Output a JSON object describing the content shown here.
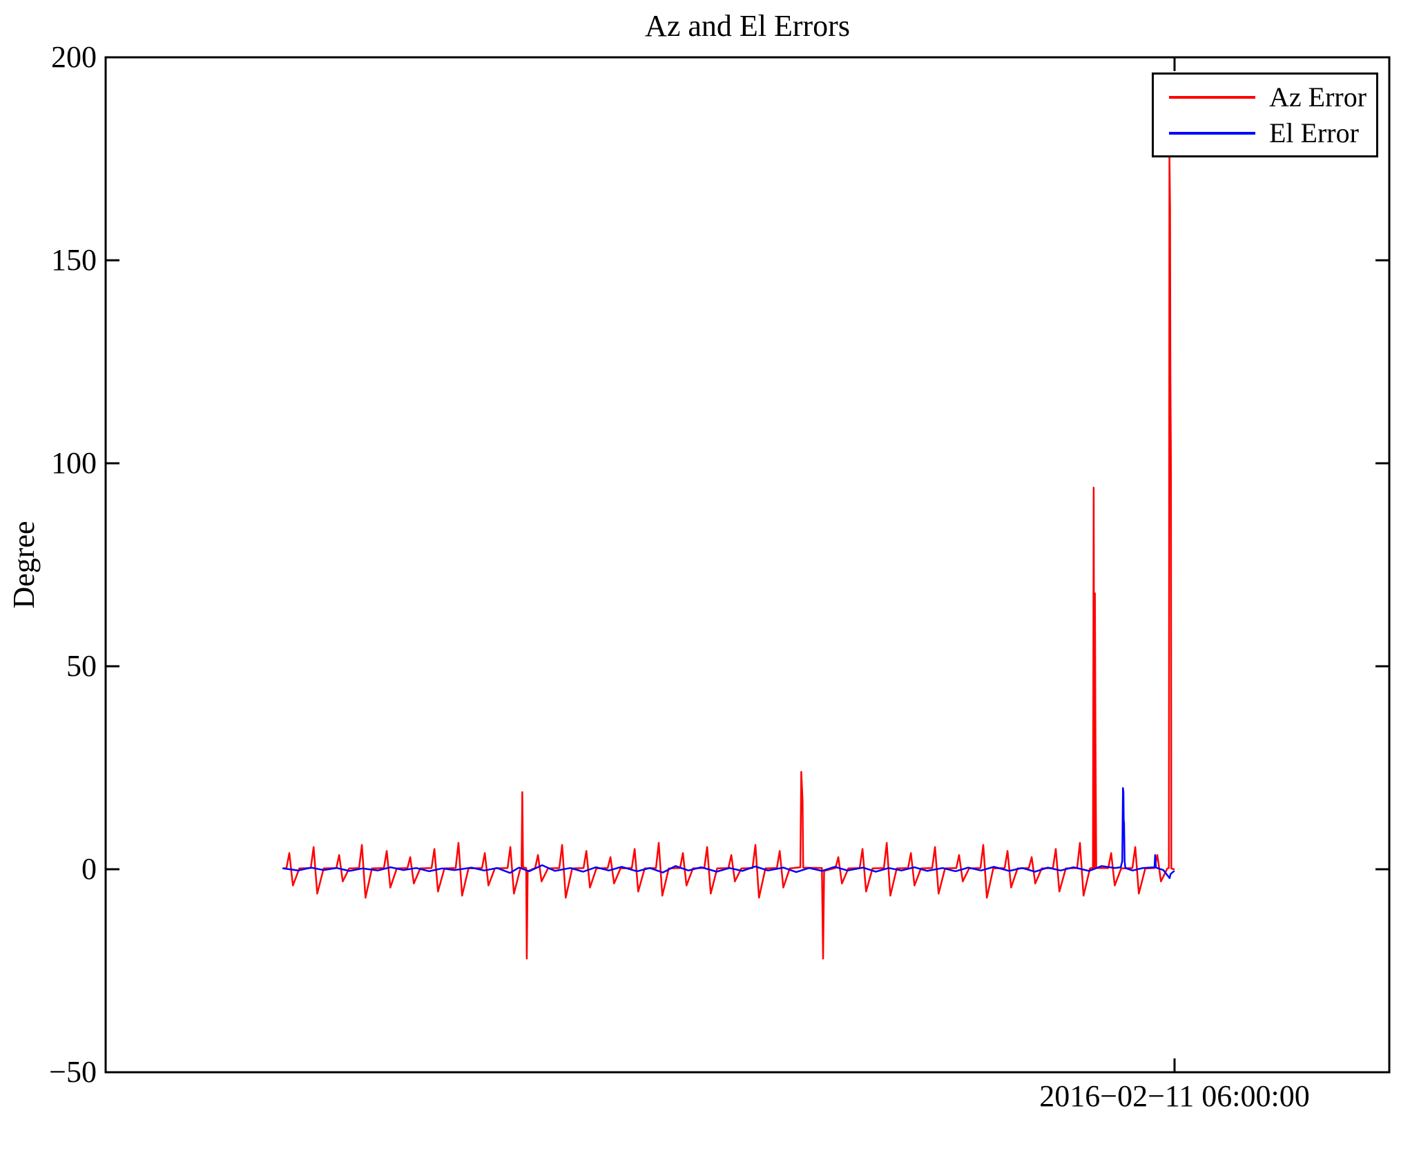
{
  "chart_data": {
    "type": "line",
    "title": "Az and El Errors",
    "xlabel": "",
    "ylabel": "Degree",
    "ylim": [
      -50,
      200
    ],
    "xlim": [
      0,
      1
    ],
    "x_units": "fraction of x-axis width (only one timestamp tick is labeled)",
    "grid": false,
    "axis_color": "#000000",
    "background_color": "#ffffff",
    "yticks": [
      {
        "value": -50,
        "label": "−50"
      },
      {
        "value": 0,
        "label": "0"
      },
      {
        "value": 50,
        "label": "50"
      },
      {
        "value": 100,
        "label": "100"
      },
      {
        "value": 150,
        "label": "150"
      },
      {
        "value": 200,
        "label": "200"
      }
    ],
    "xticks": [
      {
        "value": 0.8327,
        "label": "2016−02−11 06:00:00"
      }
    ],
    "legend": {
      "position": "top-right",
      "entries": [
        {
          "name": "Az Error",
          "color": "#ff0000"
        },
        {
          "name": "El Error",
          "color": "#0000ff"
        }
      ]
    },
    "observed_extremes": {
      "az_error_max_deg": 176,
      "az_error_min_deg": -22,
      "el_error_max_deg": 20,
      "el_error_min_deg": -2
    },
    "series": [
      {
        "name": "Az Error",
        "color": "#ff0000",
        "points": [
          [
            0.1383,
            0.2
          ],
          [
            0.1409,
            0.3
          ],
          [
            0.1431,
            4
          ],
          [
            0.1459,
            -4
          ],
          [
            0.1509,
            0.2
          ],
          [
            0.1598,
            0.3
          ],
          [
            0.162,
            5.5
          ],
          [
            0.1648,
            -6
          ],
          [
            0.1698,
            0.2
          ],
          [
            0.1797,
            0.3
          ],
          [
            0.1819,
            3.5
          ],
          [
            0.1847,
            -3
          ],
          [
            0.1897,
            0.2
          ],
          [
            0.1974,
            0.3
          ],
          [
            0.1996,
            6
          ],
          [
            0.2024,
            -7
          ],
          [
            0.2074,
            0.2
          ],
          [
            0.2168,
            0.3
          ],
          [
            0.219,
            4.5
          ],
          [
            0.2218,
            -4.5
          ],
          [
            0.2268,
            0.2
          ],
          [
            0.2351,
            0.3
          ],
          [
            0.2373,
            3
          ],
          [
            0.2401,
            -3.5
          ],
          [
            0.2451,
            0.2
          ],
          [
            0.2539,
            0.3
          ],
          [
            0.2561,
            5
          ],
          [
            0.2589,
            -5.5
          ],
          [
            0.2639,
            0.2
          ],
          [
            0.2727,
            0.3
          ],
          [
            0.2749,
            6.5
          ],
          [
            0.2777,
            -6.5
          ],
          [
            0.2827,
            0.2
          ],
          [
            0.2932,
            0.3
          ],
          [
            0.2954,
            4
          ],
          [
            0.2982,
            -4
          ],
          [
            0.3032,
            0.2
          ],
          [
            0.3131,
            0.3
          ],
          [
            0.3153,
            5.5
          ],
          [
            0.3181,
            -6
          ],
          [
            0.3231,
            0.2
          ],
          [
            0.324,
            0.3
          ],
          [
            0.3246,
            19
          ],
          [
            0.3252,
            0.5
          ],
          [
            0.3276,
            0.3
          ],
          [
            0.3281,
            -22
          ],
          [
            0.3288,
            -0.5
          ],
          [
            0.3346,
            0.3
          ],
          [
            0.3368,
            3.5
          ],
          [
            0.3396,
            -3
          ],
          [
            0.3446,
            0.2
          ],
          [
            0.3534,
            0.3
          ],
          [
            0.3556,
            6
          ],
          [
            0.3584,
            -7
          ],
          [
            0.3634,
            0.2
          ],
          [
            0.3723,
            0.3
          ],
          [
            0.3745,
            4.5
          ],
          [
            0.3773,
            -4.5
          ],
          [
            0.3823,
            0.2
          ],
          [
            0.3911,
            0.3
          ],
          [
            0.3933,
            3
          ],
          [
            0.3961,
            -3.5
          ],
          [
            0.4011,
            0.2
          ],
          [
            0.4099,
            0.3
          ],
          [
            0.4121,
            5
          ],
          [
            0.4149,
            -5.5
          ],
          [
            0.4199,
            0.2
          ],
          [
            0.4287,
            0.3
          ],
          [
            0.4309,
            6.5
          ],
          [
            0.4337,
            -6.5
          ],
          [
            0.4387,
            0.2
          ],
          [
            0.4475,
            0.3
          ],
          [
            0.4497,
            4
          ],
          [
            0.4525,
            -4
          ],
          [
            0.4575,
            0.2
          ],
          [
            0.4664,
            0.3
          ],
          [
            0.4686,
            5.5
          ],
          [
            0.4714,
            -6
          ],
          [
            0.4764,
            0.2
          ],
          [
            0.4852,
            0.3
          ],
          [
            0.4874,
            3.5
          ],
          [
            0.4902,
            -3
          ],
          [
            0.4952,
            0.2
          ],
          [
            0.504,
            0.3
          ],
          [
            0.5062,
            6
          ],
          [
            0.509,
            -7
          ],
          [
            0.514,
            0.2
          ],
          [
            0.5229,
            0.3
          ],
          [
            0.5251,
            4.5
          ],
          [
            0.5279,
            -4.5
          ],
          [
            0.5329,
            0.2
          ],
          [
            0.5412,
            0.5
          ],
          [
            0.5419,
            24
          ],
          [
            0.5429,
            17
          ],
          [
            0.5434,
            0.4
          ],
          [
            0.558,
            0.3
          ],
          [
            0.5589,
            -22
          ],
          [
            0.5597,
            -0.4
          ],
          [
            0.5686,
            0.3
          ],
          [
            0.5708,
            3
          ],
          [
            0.5736,
            -3.5
          ],
          [
            0.5786,
            0.2
          ],
          [
            0.5874,
            0.3
          ],
          [
            0.5896,
            5
          ],
          [
            0.5924,
            -5.5
          ],
          [
            0.5974,
            0.2
          ],
          [
            0.6063,
            0.3
          ],
          [
            0.6085,
            6.5
          ],
          [
            0.6113,
            -6.5
          ],
          [
            0.6163,
            0.2
          ],
          [
            0.6251,
            0.3
          ],
          [
            0.6273,
            4
          ],
          [
            0.6301,
            -4
          ],
          [
            0.6351,
            0.2
          ],
          [
            0.6439,
            0.3
          ],
          [
            0.6461,
            5.5
          ],
          [
            0.6489,
            -6
          ],
          [
            0.6539,
            0.2
          ],
          [
            0.6627,
            0.3
          ],
          [
            0.6649,
            3.5
          ],
          [
            0.6677,
            -3
          ],
          [
            0.6727,
            0.2
          ],
          [
            0.6815,
            0.3
          ],
          [
            0.6837,
            6
          ],
          [
            0.6865,
            -7
          ],
          [
            0.6915,
            0.2
          ],
          [
            0.7004,
            0.3
          ],
          [
            0.7026,
            4.5
          ],
          [
            0.7054,
            -4.5
          ],
          [
            0.7104,
            0.2
          ],
          [
            0.7192,
            0.3
          ],
          [
            0.7214,
            3
          ],
          [
            0.7242,
            -3.5
          ],
          [
            0.7292,
            0.2
          ],
          [
            0.738,
            0.3
          ],
          [
            0.7402,
            5
          ],
          [
            0.743,
            -5.5
          ],
          [
            0.748,
            0.2
          ],
          [
            0.7568,
            0.3
          ],
          [
            0.759,
            6.5
          ],
          [
            0.7618,
            -6.5
          ],
          [
            0.7668,
            0.2
          ],
          [
            0.7691,
            0.4
          ],
          [
            0.7697,
            94
          ],
          [
            0.7703,
            0.5
          ],
          [
            0.7707,
            68
          ],
          [
            0.7711,
            32
          ],
          [
            0.7717,
            0.3
          ],
          [
            0.7811,
            0.3
          ],
          [
            0.7833,
            4
          ],
          [
            0.7861,
            -4
          ],
          [
            0.7911,
            0.2
          ],
          [
            0.7999,
            0.3
          ],
          [
            0.8021,
            5.5
          ],
          [
            0.8049,
            -6
          ],
          [
            0.8099,
            0.2
          ],
          [
            0.8171,
            0.3
          ],
          [
            0.8193,
            3.5
          ],
          [
            0.8221,
            -3
          ],
          [
            0.8271,
            0.2
          ],
          [
            0.8283,
            0.3
          ],
          [
            0.8287,
            176
          ],
          [
            0.8292,
            163
          ],
          [
            0.8295,
            122
          ],
          [
            0.8299,
            100
          ],
          [
            0.8302,
            0.2
          ],
          [
            0.8322,
            0
          ]
        ]
      },
      {
        "name": "El Error",
        "color": "#0000ff",
        "points": [
          [
            0.1383,
            0.2
          ],
          [
            0.15,
            -0.3
          ],
          [
            0.16,
            0.4
          ],
          [
            0.17,
            -0.2
          ],
          [
            0.18,
            0.3
          ],
          [
            0.19,
            -0.4
          ],
          [
            0.2,
            0.2
          ],
          [
            0.212,
            -0.3
          ],
          [
            0.222,
            0.5
          ],
          [
            0.232,
            -0.2
          ],
          [
            0.242,
            0.3
          ],
          [
            0.252,
            -0.5
          ],
          [
            0.262,
            0.2
          ],
          [
            0.272,
            -0.2
          ],
          [
            0.285,
            0.4
          ],
          [
            0.295,
            -0.3
          ],
          [
            0.305,
            0.3
          ],
          [
            0.315,
            -0.9
          ],
          [
            0.322,
            0.4
          ],
          [
            0.33,
            -0.5
          ],
          [
            0.34,
            1.0
          ],
          [
            0.35,
            -0.4
          ],
          [
            0.362,
            0.3
          ],
          [
            0.372,
            -0.6
          ],
          [
            0.382,
            0.5
          ],
          [
            0.392,
            -0.3
          ],
          [
            0.402,
            0.6
          ],
          [
            0.414,
            -0.5
          ],
          [
            0.424,
            0.3
          ],
          [
            0.434,
            -0.8
          ],
          [
            0.444,
            0.8
          ],
          [
            0.454,
            -0.3
          ],
          [
            0.464,
            0.5
          ],
          [
            0.476,
            -0.6
          ],
          [
            0.486,
            0.3
          ],
          [
            0.496,
            -0.4
          ],
          [
            0.506,
            0.7
          ],
          [
            0.516,
            -0.3
          ],
          [
            0.528,
            0.4
          ],
          [
            0.538,
            -0.7
          ],
          [
            0.548,
            0.3
          ],
          [
            0.558,
            -0.4
          ],
          [
            0.568,
            0.6
          ],
          [
            0.578,
            -0.3
          ],
          [
            0.59,
            0.4
          ],
          [
            0.6,
            -0.6
          ],
          [
            0.61,
            0.3
          ],
          [
            0.62,
            -0.3
          ],
          [
            0.63,
            0.5
          ],
          [
            0.64,
            -0.4
          ],
          [
            0.652,
            0.3
          ],
          [
            0.662,
            -0.5
          ],
          [
            0.672,
            0.4
          ],
          [
            0.682,
            -0.3
          ],
          [
            0.692,
            0.6
          ],
          [
            0.704,
            -0.4
          ],
          [
            0.714,
            0.3
          ],
          [
            0.724,
            -0.6
          ],
          [
            0.734,
            0.4
          ],
          [
            0.744,
            -0.3
          ],
          [
            0.754,
            0.5
          ],
          [
            0.766,
            -0.4
          ],
          [
            0.776,
            0.8
          ],
          [
            0.786,
            0.3
          ],
          [
            0.7908,
            0.5
          ],
          [
            0.792,
            2
          ],
          [
            0.7925,
            20
          ],
          [
            0.7929,
            19
          ],
          [
            0.7931,
            12
          ],
          [
            0.7934,
            11.5
          ],
          [
            0.7938,
            2
          ],
          [
            0.7944,
            0.3
          ],
          [
            0.8,
            -0.3
          ],
          [
            0.808,
            0.3
          ],
          [
            0.8171,
            0.5
          ],
          [
            0.8176,
            3.5
          ],
          [
            0.8182,
            0.4
          ],
          [
            0.824,
            -0.2
          ],
          [
            0.8289,
            -2.2
          ],
          [
            0.8296,
            -1.2
          ],
          [
            0.831,
            -0.8
          ],
          [
            0.8322,
            -0.5
          ]
        ]
      }
    ]
  }
}
